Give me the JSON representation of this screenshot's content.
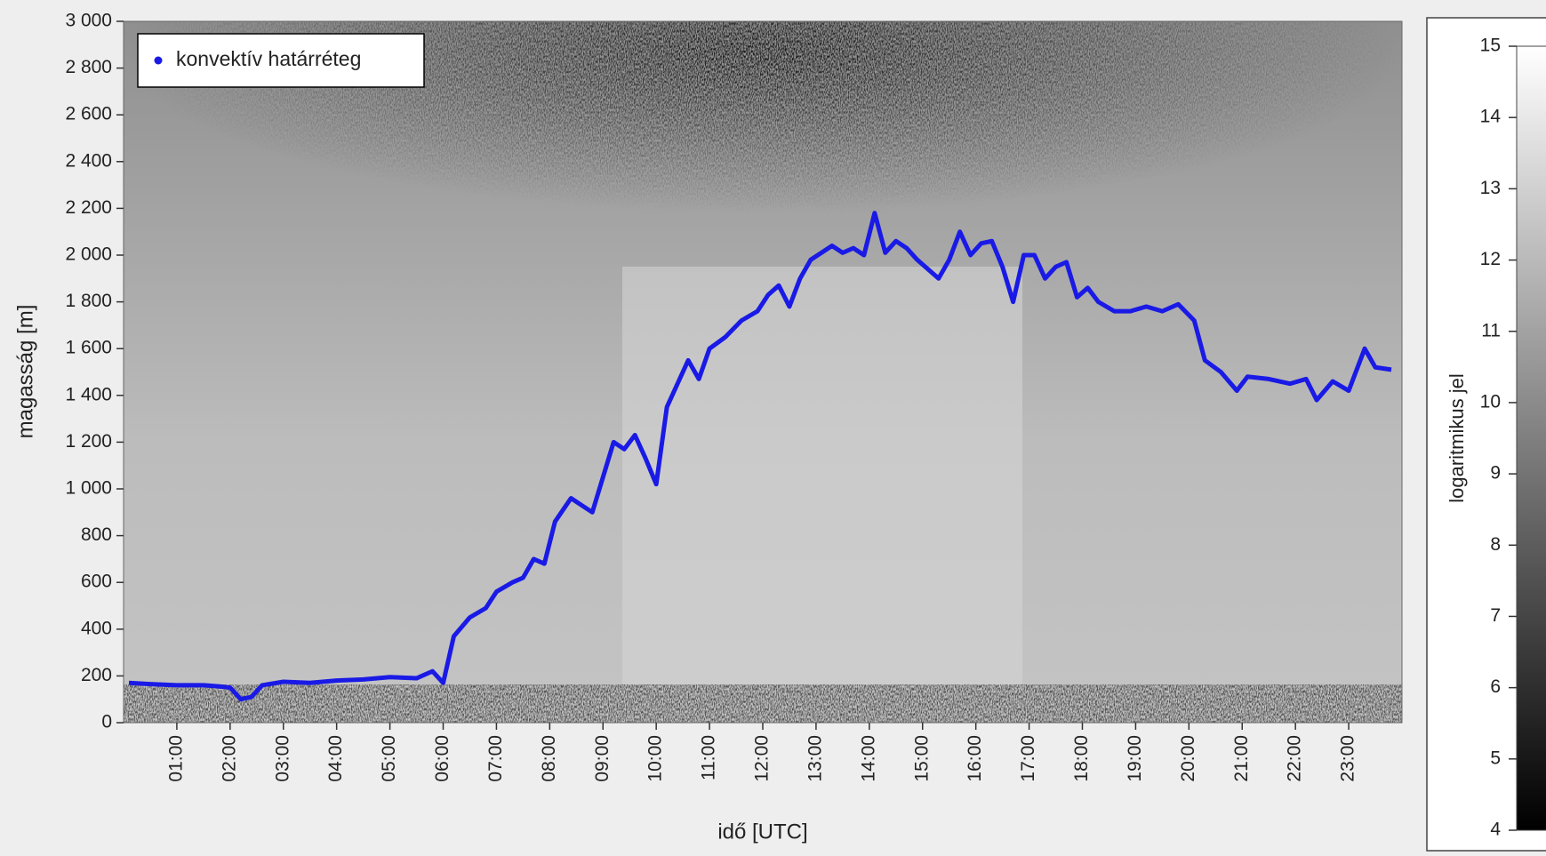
{
  "chart_data": {
    "type": "line",
    "xlabel": "idő [UTC]",
    "ylabel": "magasság [m]",
    "legend": "upper left",
    "x": [
      0.1,
      0.5,
      1.0,
      1.5,
      1.8,
      2.0,
      2.2,
      2.4,
      2.6,
      3.0,
      3.5,
      4.0,
      4.5,
      5.0,
      5.5,
      5.8,
      6.0,
      6.2,
      6.5,
      6.8,
      7.0,
      7.3,
      7.5,
      7.7,
      7.9,
      8.1,
      8.4,
      8.6,
      8.8,
      9.0,
      9.2,
      9.4,
      9.6,
      9.8,
      10.0,
      10.2,
      10.4,
      10.6,
      10.8,
      11.0,
      11.3,
      11.6,
      11.9,
      12.1,
      12.3,
      12.5,
      12.7,
      12.9,
      13.1,
      13.3,
      13.5,
      13.7,
      13.9,
      14.1,
      14.3,
      14.5,
      14.7,
      14.9,
      15.1,
      15.3,
      15.5,
      15.7,
      15.9,
      16.1,
      16.3,
      16.5,
      16.7,
      16.9,
      17.1,
      17.3,
      17.5,
      17.7,
      17.9,
      18.1,
      18.3,
      18.6,
      18.9,
      19.2,
      19.5,
      19.8,
      20.1,
      20.3,
      20.6,
      20.9,
      21.1,
      21.5,
      21.9,
      22.2,
      22.4,
      22.7,
      23.0,
      23.3,
      23.5,
      23.8
    ],
    "series": [
      {
        "name": "konvektív határréteg",
        "color": "#1a1ae6",
        "values": [
          170,
          165,
          160,
          160,
          155,
          150,
          100,
          110,
          160,
          175,
          170,
          180,
          185,
          195,
          190,
          220,
          170,
          370,
          450,
          490,
          560,
          600,
          620,
          700,
          680,
          860,
          960,
          930,
          900,
          1050,
          1200,
          1170,
          1230,
          1130,
          1020,
          1350,
          1450,
          1550,
          1470,
          1600,
          1650,
          1720,
          1760,
          1830,
          1870,
          1780,
          1900,
          1980,
          2010,
          2040,
          2010,
          2030,
          2000,
          2180,
          2010,
          2060,
          2030,
          1980,
          1940,
          1900,
          1980,
          2100,
          2000,
          2050,
          2060,
          1950,
          1800,
          2000,
          2000,
          1900,
          1950,
          1970,
          1820,
          1860,
          1800,
          1760,
          1760,
          1780,
          1760,
          1790,
          1720,
          1550,
          1500,
          1420,
          1480,
          1470,
          1450,
          1470,
          1380,
          1460,
          1420,
          1600,
          1520,
          1510
        ]
      }
    ],
    "xlim": [
      0,
      24
    ],
    "xticks": [
      {
        "value": 1,
        "label": "01:00"
      },
      {
        "value": 2,
        "label": "02:00"
      },
      {
        "value": 3,
        "label": "03:00"
      },
      {
        "value": 4,
        "label": "04:00"
      },
      {
        "value": 5,
        "label": "05:00"
      },
      {
        "value": 6,
        "label": "06:00"
      },
      {
        "value": 7,
        "label": "07:00"
      },
      {
        "value": 8,
        "label": "08:00"
      },
      {
        "value": 9,
        "label": "09:00"
      },
      {
        "value": 10,
        "label": "10:00"
      },
      {
        "value": 11,
        "label": "11:00"
      },
      {
        "value": 12,
        "label": "12:00"
      },
      {
        "value": 13,
        "label": "13:00"
      },
      {
        "value": 14,
        "label": "14:00"
      },
      {
        "value": 15,
        "label": "15:00"
      },
      {
        "value": 16,
        "label": "16:00"
      },
      {
        "value": 17,
        "label": "17:00"
      },
      {
        "value": 18,
        "label": "18:00"
      },
      {
        "value": 19,
        "label": "19:00"
      },
      {
        "value": 20,
        "label": "20:00"
      },
      {
        "value": 21,
        "label": "21:00"
      },
      {
        "value": 22,
        "label": "22:00"
      },
      {
        "value": 23,
        "label": "23:00"
      }
    ],
    "ylim": [
      0,
      3000
    ],
    "yticks": [
      0,
      200,
      400,
      600,
      800,
      {
        "value": 1000,
        "label": "1 000"
      },
      {
        "value": 1200,
        "label": "1 200"
      },
      {
        "value": 1400,
        "label": "1 400"
      },
      {
        "value": 1600,
        "label": "1 600"
      },
      {
        "value": 1800,
        "label": "1 800"
      },
      {
        "value": 2000,
        "label": "2 000"
      },
      {
        "value": 2200,
        "label": "2 200"
      },
      {
        "value": 2400,
        "label": "2 400"
      },
      {
        "value": 2600,
        "label": "2 600"
      },
      {
        "value": 2800,
        "label": "2 800"
      },
      {
        "value": 3000,
        "label": "3 000"
      }
    ],
    "colorbar": {
      "label": "logaritmikus jel",
      "lim": [
        4,
        15
      ],
      "ticks": [
        4,
        5,
        6,
        7,
        8,
        9,
        10,
        11,
        12,
        13,
        14,
        15
      ]
    }
  }
}
